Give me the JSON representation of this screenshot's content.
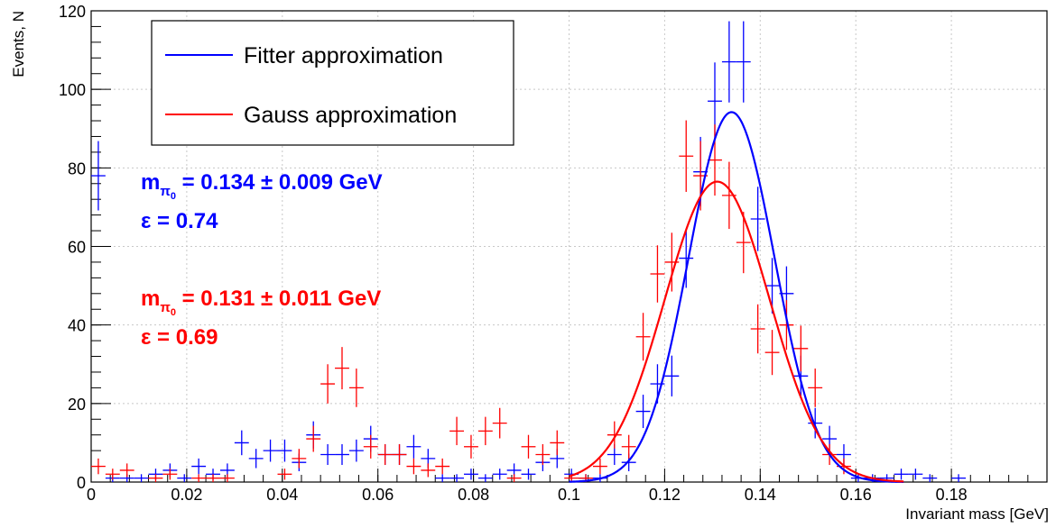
{
  "chart_data": {
    "type": "scatter",
    "xlabel": "Invariant mass [GeV]",
    "ylabel": "Events, N",
    "xlim": [
      0,
      0.2
    ],
    "ylim": [
      0,
      120
    ],
    "x_ticks": [
      0,
      0.02,
      0.04,
      0.06,
      0.08,
      0.1,
      0.12,
      0.14,
      0.16,
      0.18
    ],
    "x_tick_labels": [
      "0",
      "0.02",
      "0.04",
      "0.06",
      "0.08",
      "0.1",
      "0.12",
      "0.14",
      "0.16",
      "0.18"
    ],
    "y_ticks": [
      0,
      20,
      40,
      60,
      80,
      100,
      120
    ],
    "y_tick_labels": [
      "0",
      "20",
      "40",
      "60",
      "80",
      "100",
      "120"
    ],
    "grid": true,
    "legend": {
      "position": "top-left",
      "entries": [
        {
          "label": "Fitter approximation",
          "color": "#0000ff"
        },
        {
          "label": "Gauss approximation",
          "color": "#ff0000"
        }
      ]
    },
    "annotations": [
      {
        "mass_symbol": "m",
        "sub": "π",
        "subsub": "0",
        "text": " = 0.134 ± 0.009 GeV",
        "color": "#0000ff"
      },
      {
        "text": "ε = 0.74",
        "color": "#0000ff"
      },
      {
        "mass_symbol": "m",
        "sub": "π",
        "subsub": "0",
        "text": " = 0.131 ± 0.011 GeV",
        "color": "#ff0000"
      },
      {
        "text": "ε = 0.69",
        "color": "#ff0000"
      }
    ],
    "bin_half_width": 0.0015,
    "series": [
      {
        "name": "Fitter approximation",
        "color": "#0000ff",
        "points": [
          [
            0.0015,
            78
          ],
          [
            0.0045,
            1
          ],
          [
            0.0075,
            1
          ],
          [
            0.0105,
            1
          ],
          [
            0.0135,
            2
          ],
          [
            0.0165,
            3
          ],
          [
            0.0195,
            1
          ],
          [
            0.0225,
            4
          ],
          [
            0.0255,
            2
          ],
          [
            0.0285,
            3
          ],
          [
            0.0315,
            10
          ],
          [
            0.0345,
            6
          ],
          [
            0.0375,
            8
          ],
          [
            0.0405,
            8
          ],
          [
            0.0435,
            5
          ],
          [
            0.0465,
            12
          ],
          [
            0.0495,
            7
          ],
          [
            0.0525,
            7
          ],
          [
            0.0555,
            8
          ],
          [
            0.0585,
            11
          ],
          [
            0.0615,
            7
          ],
          [
            0.0645,
            7
          ],
          [
            0.0675,
            9
          ],
          [
            0.0705,
            6
          ],
          [
            0.0735,
            1
          ],
          [
            0.0765,
            1
          ],
          [
            0.0795,
            2
          ],
          [
            0.0825,
            1
          ],
          [
            0.0855,
            2
          ],
          [
            0.0885,
            3
          ],
          [
            0.0915,
            2
          ],
          [
            0.0945,
            5
          ],
          [
            0.0975,
            6
          ],
          [
            0.1005,
            2
          ],
          [
            0.1035,
            1
          ],
          [
            0.1065,
            1
          ],
          [
            0.1095,
            7
          ],
          [
            0.1125,
            5
          ],
          [
            0.1155,
            18
          ],
          [
            0.1185,
            25
          ],
          [
            0.1215,
            27
          ],
          [
            0.1245,
            57
          ],
          [
            0.1275,
            79
          ],
          [
            0.1305,
            97
          ],
          [
            0.1335,
            107
          ],
          [
            0.1365,
            107
          ],
          [
            0.1395,
            67
          ],
          [
            0.1425,
            50
          ],
          [
            0.1455,
            48
          ],
          [
            0.1485,
            27
          ],
          [
            0.1515,
            15
          ],
          [
            0.1545,
            11
          ],
          [
            0.1575,
            7
          ],
          [
            0.1605,
            1
          ],
          [
            0.1635,
            1
          ],
          [
            0.1665,
            1
          ],
          [
            0.1695,
            2
          ],
          [
            0.1725,
            2
          ],
          [
            0.1755,
            1
          ],
          [
            0.1815,
            1
          ]
        ],
        "fit": {
          "type": "gaussian",
          "amplitude": 94.2,
          "mean": 0.134,
          "sigma": 0.009,
          "x_range": [
            0.1,
            0.17
          ]
        }
      },
      {
        "name": "Gauss approximation",
        "color": "#ff0000",
        "points": [
          [
            0.0015,
            4
          ],
          [
            0.0045,
            2
          ],
          [
            0.0075,
            3
          ],
          [
            0.0135,
            1
          ],
          [
            0.0165,
            2
          ],
          [
            0.0225,
            1
          ],
          [
            0.0255,
            1
          ],
          [
            0.0285,
            1
          ],
          [
            0.0405,
            2
          ],
          [
            0.0435,
            6
          ],
          [
            0.0465,
            11
          ],
          [
            0.0495,
            25
          ],
          [
            0.0525,
            29
          ],
          [
            0.0555,
            24
          ],
          [
            0.0585,
            9
          ],
          [
            0.0615,
            7
          ],
          [
            0.0645,
            7
          ],
          [
            0.0675,
            4
          ],
          [
            0.0705,
            3
          ],
          [
            0.0735,
            4
          ],
          [
            0.0765,
            13
          ],
          [
            0.0795,
            9
          ],
          [
            0.0825,
            13
          ],
          [
            0.0855,
            15
          ],
          [
            0.0885,
            1
          ],
          [
            0.0915,
            9
          ],
          [
            0.0945,
            7
          ],
          [
            0.0975,
            10
          ],
          [
            0.1005,
            1
          ],
          [
            0.1035,
            1
          ],
          [
            0.1065,
            4
          ],
          [
            0.1095,
            12
          ],
          [
            0.1125,
            9
          ],
          [
            0.1155,
            37
          ],
          [
            0.1185,
            53
          ],
          [
            0.1215,
            56
          ],
          [
            0.1245,
            83
          ],
          [
            0.1275,
            78
          ],
          [
            0.1305,
            82
          ],
          [
            0.1335,
            73
          ],
          [
            0.1365,
            61
          ],
          [
            0.1395,
            39
          ],
          [
            0.1425,
            33
          ],
          [
            0.1455,
            40
          ],
          [
            0.1485,
            34
          ],
          [
            0.1515,
            24
          ],
          [
            0.1545,
            7
          ],
          [
            0.1575,
            4
          ]
        ],
        "fit": {
          "type": "gaussian",
          "amplitude": 76.5,
          "mean": 0.131,
          "sigma": 0.011,
          "x_range": [
            0.1,
            0.17
          ]
        }
      }
    ]
  }
}
